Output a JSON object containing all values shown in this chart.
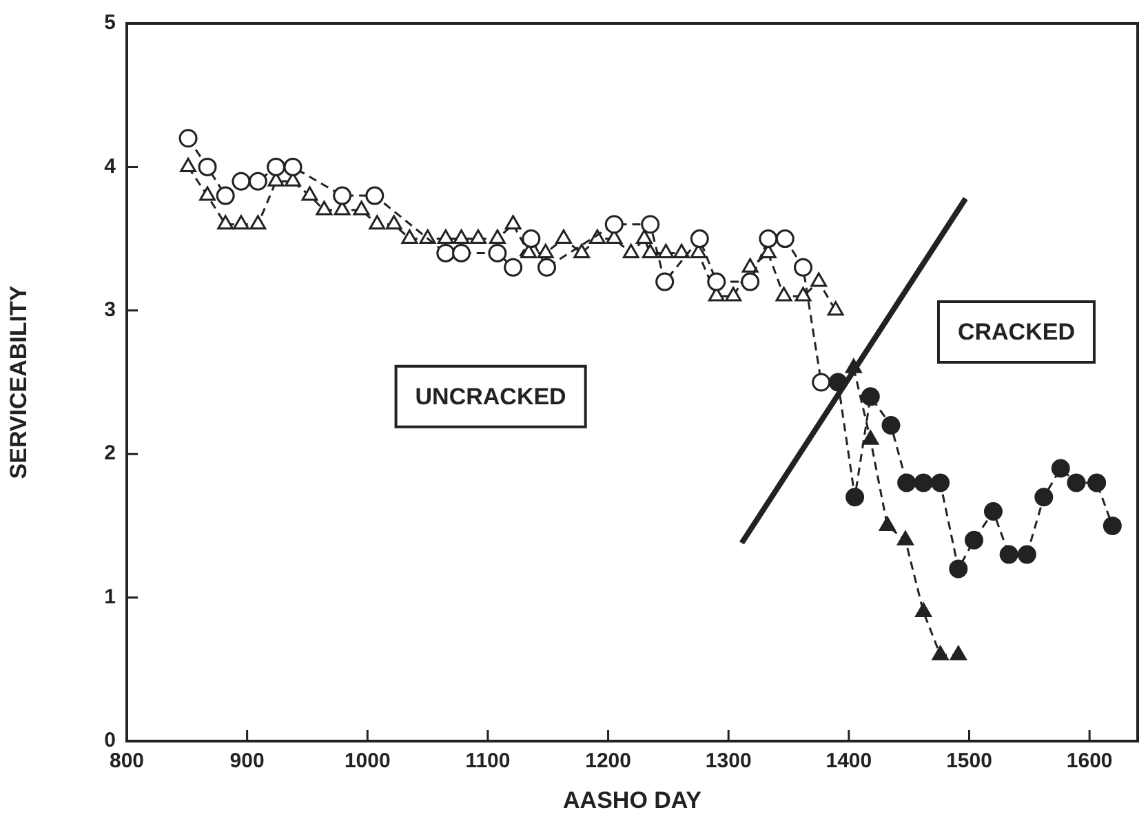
{
  "chart_data": {
    "type": "line",
    "xlabel": "AASHO DAY",
    "ylabel": "SERVICEABILITY",
    "xlim": [
      800,
      1640
    ],
    "ylim": [
      0,
      5
    ],
    "xticks": [
      800,
      900,
      1000,
      1100,
      1200,
      1300,
      1400,
      1500,
      1600
    ],
    "yticks": [
      0,
      1,
      2,
      3,
      4,
      5
    ],
    "grid": false,
    "legend": false,
    "line_style": "dashed",
    "annotations": [
      "UNCRACKED",
      "CRACKED"
    ],
    "series": [
      {
        "color": "#222222",
        "marker": "circle",
        "colors": [
          "#ffffff",
          "#ffffff",
          "#ffffff",
          "#ffffff",
          "#ffffff",
          "#ffffff",
          "#ffffff",
          "#ffffff",
          "#ffffff",
          "#ffffff",
          "#ffffff",
          "#ffffff",
          "#ffffff",
          "#ffffff",
          "#ffffff",
          "#ffffff",
          "#ffffff",
          "#ffffff",
          "#ffffff",
          "#ffffff",
          "#ffffff",
          "#ffffff",
          "#ffffff",
          "#ffffff",
          "#ffffff"
        ],
        "x": [
          851,
          867,
          882,
          895,
          909,
          924,
          938,
          979,
          1006,
          1065,
          1078,
          1108,
          1121,
          1136,
          1149,
          1205,
          1235,
          1247,
          1276,
          1290,
          1318,
          1333,
          1347,
          1362,
          1377
        ],
        "values": [
          4.2,
          4.0,
          3.8,
          3.9,
          3.9,
          4.0,
          4.0,
          3.8,
          3.8,
          3.4,
          3.4,
          3.4,
          3.3,
          3.5,
          3.3,
          3.6,
          3.6,
          3.2,
          3.5,
          3.2,
          3.2,
          3.5,
          3.5,
          3.3,
          2.5
        ]
      },
      {
        "color": "#222222",
        "marker": "triangle",
        "colors": [
          "#ffffff",
          "#ffffff",
          "#ffffff",
          "#ffffff",
          "#ffffff",
          "#ffffff",
          "#ffffff",
          "#ffffff",
          "#ffffff",
          "#ffffff",
          "#ffffff",
          "#ffffff",
          "#ffffff",
          "#ffffff",
          "#ffffff",
          "#ffffff",
          "#ffffff",
          "#ffffff",
          "#ffffff",
          "#ffffff",
          "#ffffff",
          "#ffffff",
          "#ffffff",
          "#ffffff",
          "#ffffff",
          "#ffffff",
          "#ffffff",
          "#ffffff",
          "#ffffff",
          "#ffffff",
          "#ffffff",
          "#ffffff",
          "#ffffff",
          "#ffffff",
          "#ffffff",
          "#ffffff",
          "#ffffff",
          "#ffffff",
          "#ffffff",
          "#ffffff"
        ],
        "x": [
          851,
          867,
          882,
          895,
          909,
          924,
          938,
          952,
          964,
          979,
          995,
          1008,
          1022,
          1035,
          1050,
          1065,
          1078,
          1092,
          1108,
          1121,
          1134,
          1148,
          1163,
          1178,
          1191,
          1205,
          1219,
          1230,
          1235,
          1248,
          1261,
          1275,
          1290,
          1304,
          1318,
          1333,
          1346,
          1362,
          1375,
          1389
        ],
        "values": [
          4.0,
          3.8,
          3.6,
          3.6,
          3.6,
          3.9,
          3.9,
          3.8,
          3.7,
          3.7,
          3.7,
          3.6,
          3.6,
          3.5,
          3.5,
          3.5,
          3.5,
          3.5,
          3.5,
          3.6,
          3.4,
          3.4,
          3.5,
          3.4,
          3.5,
          3.5,
          3.4,
          3.5,
          3.4,
          3.4,
          3.4,
          3.4,
          3.1,
          3.1,
          3.3,
          3.4,
          3.1,
          3.1,
          3.2,
          3.0
        ]
      },
      {
        "color": "#222222",
        "marker": "circle",
        "x": [
          1391,
          1405,
          1418,
          1435,
          1448,
          1462,
          1476,
          1491,
          1504,
          1520,
          1533,
          1548,
          1562,
          1576,
          1589,
          1606,
          1619
        ],
        "values": [
          2.5,
          1.7,
          2.4,
          2.2,
          1.8,
          1.8,
          1.8,
          1.2,
          1.4,
          1.6,
          1.3,
          1.3,
          1.7,
          1.9,
          1.8,
          1.8,
          1.5
        ]
      },
      {
        "color": "#222222",
        "marker": "triangle",
        "x": [
          1404,
          1418,
          1432,
          1447,
          1462,
          1476,
          1491
        ],
        "values": [
          2.6,
          2.1,
          1.5,
          1.4,
          0.9,
          0.6,
          0.6
        ]
      },
      {
        "color": "#222222",
        "marker": "none",
        "line_style": "solid",
        "x": [
          1311,
          1497
        ],
        "values": [
          1.38,
          3.78
        ]
      }
    ]
  }
}
